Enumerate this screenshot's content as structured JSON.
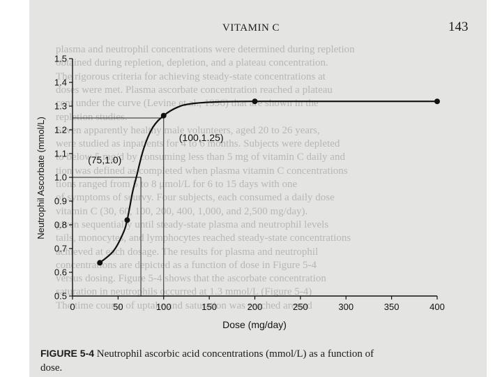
{
  "header": {
    "title": "VITAMIN C",
    "page_number": "143"
  },
  "chart_data": {
    "type": "scatter",
    "xlabel": "Dose (mg/day)",
    "ylabel": "Neutrophil Ascorbate (mmol/L)",
    "xlim": [
      0,
      400
    ],
    "ylim": [
      0.5,
      1.5
    ],
    "x_ticks": [
      0,
      50,
      100,
      150,
      200,
      250,
      300,
      350,
      400
    ],
    "y_ticks": [
      "0.5",
      "0.6",
      "0.7",
      "0.8",
      "0.9",
      "1.0",
      "1.1",
      "1.2",
      "1.3",
      "1.4",
      "1.5"
    ],
    "points": [
      {
        "x": 30,
        "y": 0.64
      },
      {
        "x": 60,
        "y": 0.82
      },
      {
        "x": 100,
        "y": 1.26
      },
      {
        "x": 200,
        "y": 1.32
      },
      {
        "x": 400,
        "y": 1.32
      }
    ],
    "curve": [
      [
        30,
        0.64
      ],
      [
        45,
        0.69
      ],
      [
        55,
        0.76
      ],
      [
        60,
        0.82
      ],
      [
        66,
        0.94
      ],
      [
        70,
        1.0
      ],
      [
        78,
        1.12
      ],
      [
        88,
        1.21
      ],
      [
        100,
        1.26
      ],
      [
        115,
        1.295
      ],
      [
        130,
        1.31
      ],
      [
        160,
        1.318
      ],
      [
        200,
        1.32
      ],
      [
        300,
        1.32
      ],
      [
        400,
        1.32
      ]
    ],
    "annotations": [
      {
        "text": "(75,1.0)",
        "x": 75,
        "y": 1.0
      },
      {
        "text": "(100,1.25)",
        "x": 100,
        "y": 1.25
      }
    ]
  },
  "caption": {
    "label": "FIGURE 5-4",
    "text": "Neutrophil ascorbic acid concentrations (mmol/L) as a function of",
    "text2": "dose."
  },
  "background_text": [
    "plasma and neutrophil concentrations were determined during repletion",
    "obtained during repletion, depletion, and a plateau concentration.",
    "The rigorous criteria for achieving steady-state concentrations at",
    "doses were met. Plasma ascorbate concentration reached a plateau",
    "cent under the curve (Levine et al., 1996) that are shown in the",
    "repletion studies.",
    "Seven apparently healthy male volunteers, aged 20 to 26 years,",
    "were studied as inpatients for 4 to 6 months. Subjects were depleted",
    "to below 5 mg/d by consuming less than 5 mg of vitamin C daily and",
    "tion was defined as completed when plasma vitamin C concentrations",
    "tions ranged from 5 to 8 μmol/L for 6 to 15 days with one",
    "of symptoms of scurvy. Four subjects, each consumed a daily dose",
    "vitamin C (30, 60, 100, 200, 400, 1,000, and 2,500 mg/day).",
    "given sequentially until steady-state plasma and neutrophil levels",
    "tails, monocytes, and lymphocytes reached steady-state concentrations",
    "achieved at each dosage. The results for plasma and neutrophil",
    "concentrations are depicted as a function of dose in Figure 5-4",
    "versus dosing. Figure 5-4 shows that the ascorbate concentration",
    "saturation in neutrophils occurred at 1.3 mmol/L (Figure 5-4)",
    "The time course of uptake and saturation was reached around"
  ]
}
